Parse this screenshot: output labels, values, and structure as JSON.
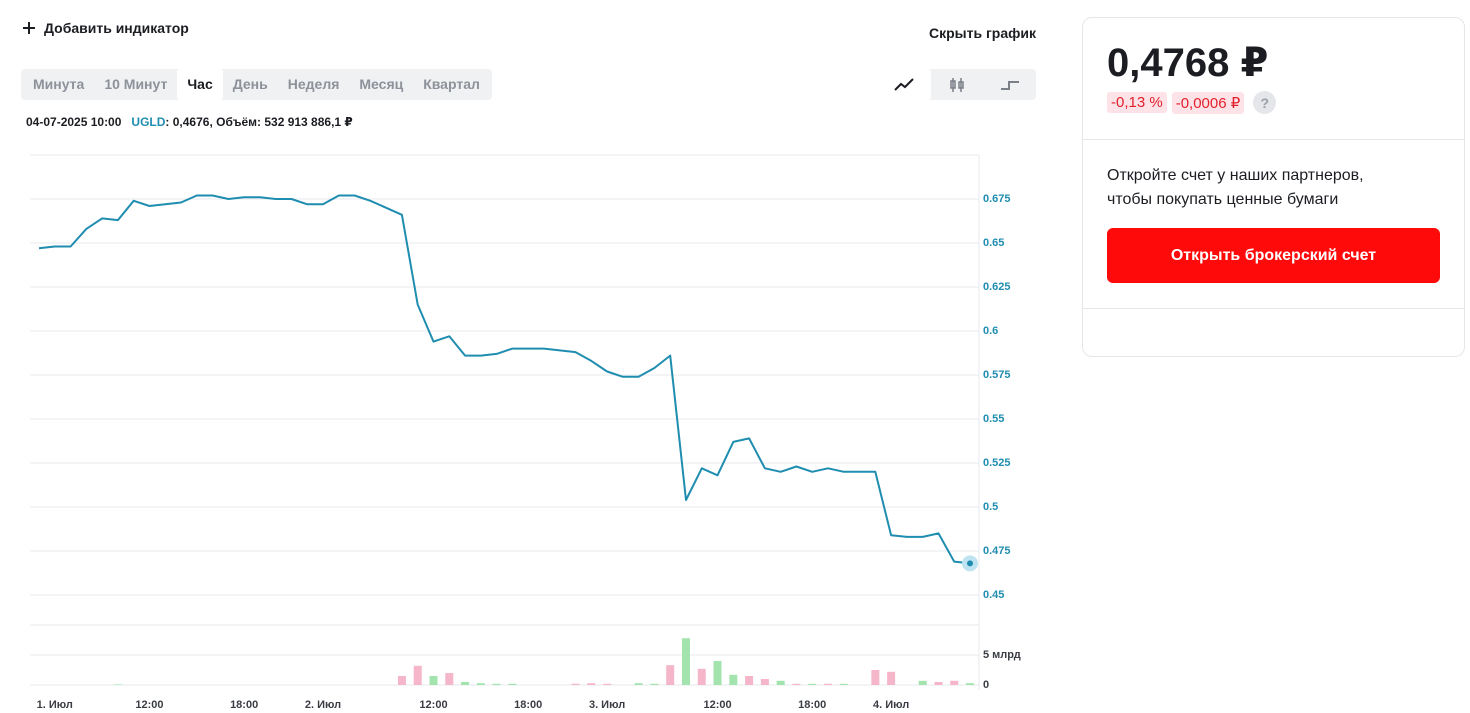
{
  "toolbar": {
    "add_indicator": "Добавить индикатор",
    "hide_chart": "Скрыть график",
    "periods": [
      "Минута",
      "10 Минут",
      "Час",
      "День",
      "Неделя",
      "Месяц",
      "Квартал"
    ],
    "active_period": "Час"
  },
  "info": {
    "date": "04-07-2025 10:00",
    "ticker": "UGLD",
    "details": ": 0,4676, Объём: 532 913 886,1 ₽"
  },
  "quote": {
    "price": "0,4768 ₽",
    "change_percent": "-0,13 %",
    "change_abs": "-0,0006 ₽",
    "help": "?"
  },
  "promo": {
    "line1": "Откройте счет у наших партнеров,",
    "line2": "чтобы покупать ценные бумаги",
    "button": "Открыть брокерский счет"
  },
  "chart_data": [
    {
      "type": "line",
      "color": "#1f8db0",
      "categories": [
        null,
        "1. Июл",
        null,
        null,
        null,
        null,
        null,
        "12:00",
        null,
        null,
        null,
        null,
        null,
        "18:00",
        null,
        null,
        null,
        null,
        "2. Июл",
        null,
        null,
        null,
        null,
        null,
        null,
        "12:00",
        null,
        null,
        null,
        null,
        null,
        "18:00",
        null,
        null,
        null,
        null,
        "3. Июл",
        null,
        null,
        null,
        null,
        null,
        null,
        "12:00",
        null,
        null,
        null,
        null,
        null,
        "18:00",
        null,
        null,
        null,
        null,
        "4. Июл",
        null,
        null,
        null,
        null,
        null
      ],
      "values": [
        0.647,
        0.648,
        0.648,
        0.658,
        0.664,
        0.663,
        0.674,
        0.671,
        0.672,
        0.673,
        0.677,
        0.677,
        0.675,
        0.676,
        0.676,
        0.675,
        0.675,
        0.672,
        0.672,
        0.677,
        0.677,
        0.674,
        0.67,
        0.666,
        0.615,
        0.594,
        0.597,
        0.586,
        0.586,
        0.587,
        0.59,
        0.59,
        0.59,
        0.589,
        0.588,
        0.583,
        0.577,
        0.574,
        0.574,
        0.579,
        0.586,
        0.504,
        0.522,
        0.518,
        0.537,
        0.539,
        0.522,
        0.52,
        0.523,
        0.52,
        0.522,
        0.52,
        0.52,
        0.52,
        0.484,
        0.483,
        0.483,
        0.485,
        0.469,
        0.468
      ],
      "ylim": [
        0.4375,
        0.7
      ],
      "yticks": [
        0.45,
        0.475,
        0.5,
        0.525,
        0.55,
        0.575,
        0.6,
        0.625,
        0.65,
        0.675
      ],
      "grid": true
    },
    {
      "type": "bar",
      "values": [
        0,
        0,
        0,
        0,
        0,
        100000000,
        0,
        0,
        0,
        0,
        0,
        0,
        0,
        0,
        0,
        0,
        0,
        0,
        0,
        0,
        0,
        0,
        0,
        1500000000,
        3200000000,
        1500000000,
        2000000000,
        500000000,
        300000000,
        200000000,
        200000000,
        0,
        0,
        0,
        200000000,
        300000000,
        200000000,
        0,
        300000000,
        200000000,
        3300000000,
        7800000000,
        2700000000,
        4000000000,
        1700000000,
        1500000000,
        1000000000,
        700000000,
        200000000,
        200000000,
        200000000,
        200000000,
        0,
        2500000000,
        2200000000,
        0,
        700000000,
        500000000,
        700000000,
        300000000
      ],
      "colors": [
        "#a3e4ae",
        "#a3e4ae",
        "#a3e4ae",
        "#a3e4ae",
        "#a3e4ae",
        "#a3e4ae",
        "#a3e4ae",
        "#a3e4ae",
        "#a3e4ae",
        "#a3e4ae",
        "#a3e4ae",
        "#a3e4ae",
        "#a3e4ae",
        "#a3e4ae",
        "#a3e4ae",
        "#a3e4ae",
        "#a3e4ae",
        "#a3e4ae",
        "#a3e4ae",
        "#a3e4ae",
        "#a3e4ae",
        "#a3e4ae",
        "#a3e4ae",
        "#f6b6ca",
        "#f6b6ca",
        "#a3e4ae",
        "#f6b6ca",
        "#a3e4ae",
        "#a3e4ae",
        "#a3e4ae",
        "#a3e4ae",
        "#a3e4ae",
        "#a3e4ae",
        "#a3e4ae",
        "#f6b6ca",
        "#f6b6ca",
        "#f6b6ca",
        "#a3e4ae",
        "#a3e4ae",
        "#a3e4ae",
        "#f6b6ca",
        "#a3e4ae",
        "#f6b6ca",
        "#a3e4ae",
        "#a3e4ae",
        "#f6b6ca",
        "#f6b6ca",
        "#a3e4ae",
        "#f6b6ca",
        "#a3e4ae",
        "#f6b6ca",
        "#a3e4ae",
        "#a3e4ae",
        "#f6b6ca",
        "#f6b6ca",
        "#a3e4ae",
        "#a3e4ae",
        "#f6b6ca",
        "#f6b6ca",
        "#a3e4ae"
      ],
      "ylim": [
        0,
        10000000000
      ],
      "yticks": [
        0,
        {
          "value": 5000000000,
          "label": "5 млрд"
        }
      ],
      "grid": true
    }
  ]
}
